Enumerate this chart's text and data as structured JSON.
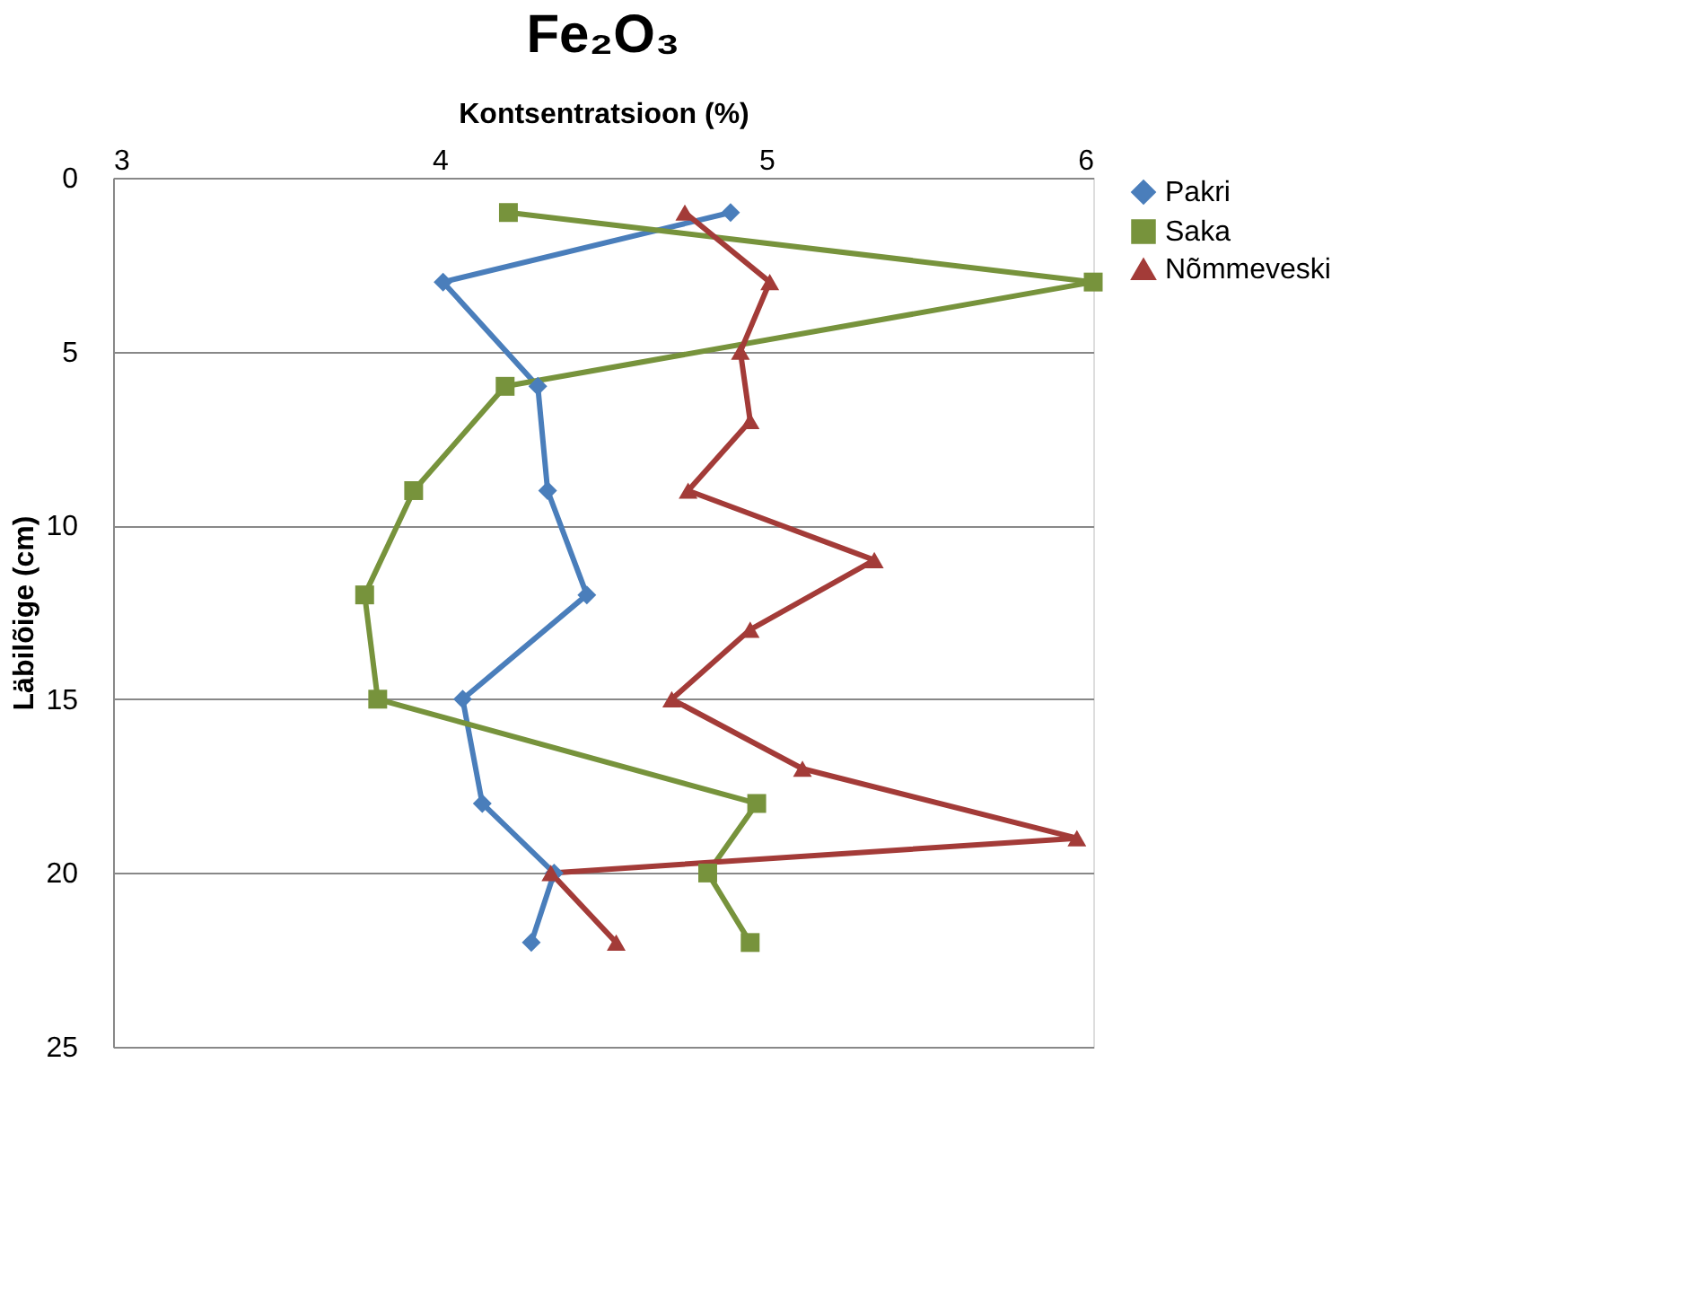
{
  "chart_data": {
    "type": "line",
    "title": "Fe₂O₃",
    "xlabel": "Kontsentratsioon (%)",
    "ylabel": "Läbilõige (cm)",
    "xlim": [
      3,
      6
    ],
    "xticks": [
      3,
      4,
      5,
      6
    ],
    "ylim": [
      25,
      0
    ],
    "yticks": [
      0,
      5,
      10,
      15,
      20,
      25
    ],
    "grid": "y",
    "legend": "right",
    "series": [
      {
        "name": "Pakri",
        "color": "#4a7ebb",
        "marker": "diamond",
        "x": [
          4.89,
          4.01,
          4.3,
          4.33,
          4.45,
          4.07,
          4.13,
          4.35,
          4.28
        ],
        "values": [
          1,
          3,
          6,
          9,
          12,
          15,
          18,
          20,
          22
        ]
      },
      {
        "name": "Saka",
        "color": "#77933c",
        "marker": "square",
        "x": [
          4.21,
          6.0,
          4.2,
          3.92,
          3.77,
          3.81,
          4.97,
          4.82,
          4.95
        ],
        "values": [
          1,
          3,
          6,
          9,
          12,
          15,
          18,
          20,
          22
        ]
      },
      {
        "name": "Nõmmeveski",
        "color": "#a33b38",
        "marker": "triangle",
        "x": [
          4.75,
          5.01,
          4.92,
          4.95,
          4.76,
          5.33,
          4.95,
          4.71,
          5.11,
          5.95,
          4.34,
          4.54
        ],
        "values": [
          1,
          3,
          5,
          7,
          9,
          11,
          13,
          15,
          17,
          19,
          20,
          22
        ]
      }
    ]
  }
}
